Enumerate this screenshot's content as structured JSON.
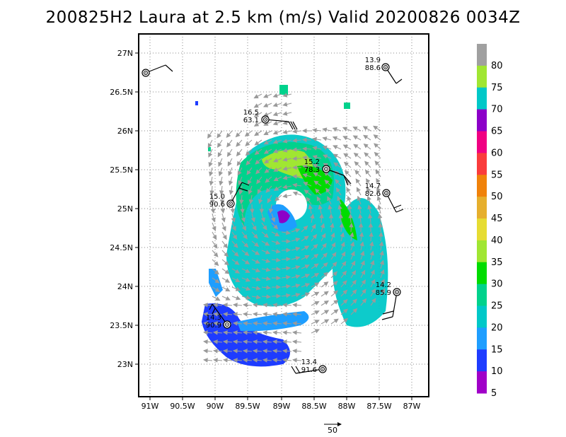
{
  "title": "200825H2 Laura at 2.5 km (m/s) Valid 20200826 0034Z",
  "map": {
    "lon_labels": [
      "91W",
      "90.5W",
      "90W",
      "89.5W",
      "89W",
      "88.5W",
      "88W",
      "87.5W",
      "87W"
    ],
    "lat_labels": [
      "27N",
      "26.5N",
      "26N",
      "25.5N",
      "25N",
      "24.5N",
      "24N",
      "23.5N",
      "23N"
    ],
    "grid": "dotted"
  },
  "colorbar": {
    "labels": [
      "80",
      "75",
      "70",
      "65",
      "60",
      "55",
      "50",
      "45",
      "40",
      "35",
      "30",
      "25",
      "20",
      "15",
      "10",
      "5"
    ],
    "colors": [
      "#a0a0a0",
      "#a0e632",
      "#00c8c8",
      "#8c00c8",
      "#f00082",
      "#fa3c3c",
      "#f0820a",
      "#e6af2d",
      "#e6dc32",
      "#a0e632",
      "#00dc00",
      "#00d28c",
      "#00c8c8",
      "#1e9eff",
      "#1e3cff",
      "#a000c8"
    ]
  },
  "reference_vector": {
    "label": "50"
  },
  "observations": [
    {
      "id": "obs-1",
      "wind": "",
      "pressure": ""
    },
    {
      "id": "obs-2",
      "wind": "13.9",
      "pressure": "88.6"
    },
    {
      "id": "obs-3",
      "wind": "16.5",
      "pressure": "63.1"
    },
    {
      "id": "obs-4",
      "wind": "15.2",
      "pressure": "78.3"
    },
    {
      "id": "obs-5",
      "wind": "14.7",
      "pressure": "82.6"
    },
    {
      "id": "obs-6",
      "wind": "15.0",
      "pressure": "90.6"
    },
    {
      "id": "obs-7",
      "wind": "14.2",
      "pressure": "85.9"
    },
    {
      "id": "obs-8",
      "wind": "14.3",
      "pressure": "90.9"
    },
    {
      "id": "obs-9",
      "wind": "13.4",
      "pressure": "91.6"
    }
  ]
}
